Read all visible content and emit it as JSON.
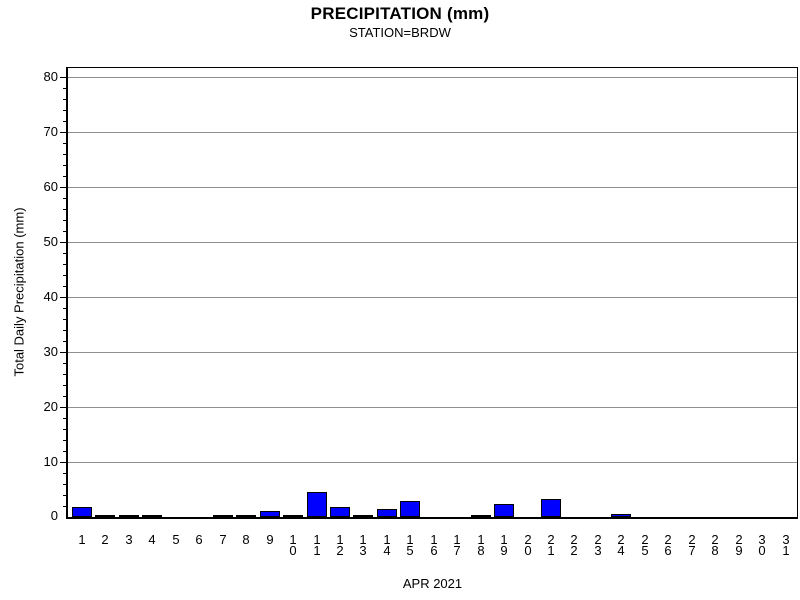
{
  "page": {
    "background": "#ffffff"
  },
  "chart_data": {
    "type": "bar",
    "title": "PRECIPITATION (mm)",
    "subtitle": "STATION=BRDW",
    "ylabel": "Total Daily Precipitation (mm)",
    "xlabel": "APR 2021",
    "categories": [
      1,
      2,
      3,
      4,
      5,
      6,
      7,
      8,
      9,
      10,
      11,
      12,
      13,
      14,
      15,
      16,
      17,
      18,
      19,
      20,
      21,
      22,
      23,
      24,
      25,
      26,
      27,
      28,
      29,
      30,
      31
    ],
    "values": [
      1.8,
      0.3,
      0.3,
      0.3,
      0,
      0,
      0.3,
      0.3,
      1.1,
      0.3,
      4.5,
      1.9,
      0.2,
      1.5,
      2.9,
      0,
      0,
      0.4,
      2.3,
      0,
      3.2,
      0,
      0,
      0.6,
      0,
      0,
      0,
      0,
      0,
      0,
      0
    ],
    "ylim": [
      0,
      81.6
    ],
    "yticks_major": [
      0,
      10,
      20,
      30,
      40,
      50,
      60,
      70,
      80
    ],
    "ytick_minor_step": 2,
    "grid": "horizontal-major",
    "legend": "none",
    "bar_color": "#0000ff",
    "bar_outline_color": "#000000",
    "grid_color": "#8f8f8f",
    "axis_color": "#000000"
  }
}
